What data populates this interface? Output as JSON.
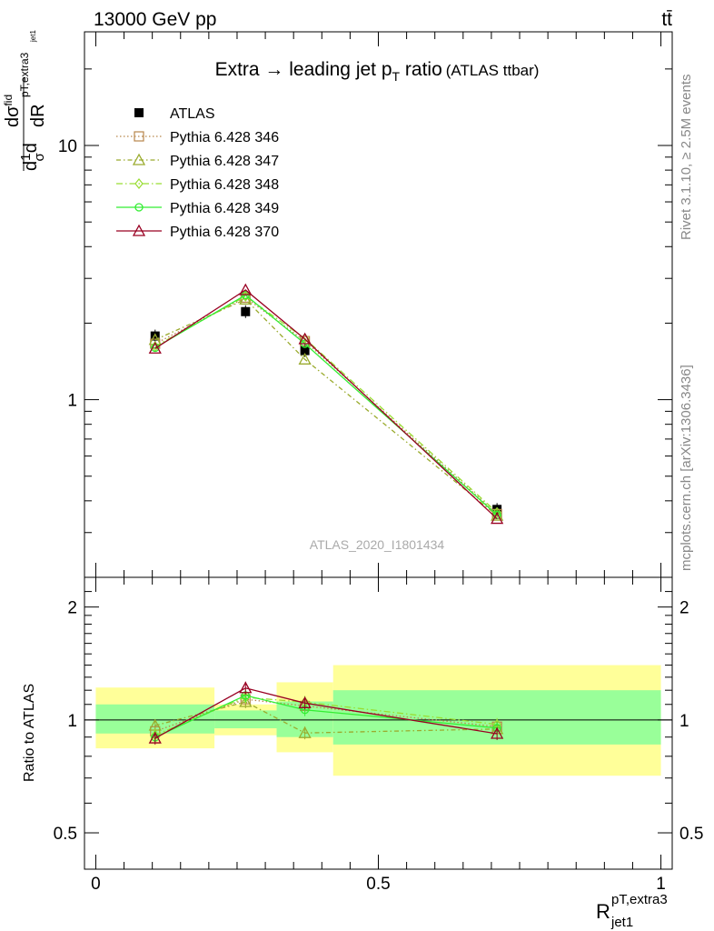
{
  "header": {
    "energy_label": "13000 GeV pp",
    "process_label": "tt̄"
  },
  "side_labels": {
    "rivet": "Rivet 3.1.10, ≥ 2.5M events",
    "mcplots": "mcplots.cern.ch [arXiv:1306.3436]"
  },
  "main_panel": {
    "title_main": "Extra → leading jet p",
    "title_sub": "T",
    "title_ratio": " ratio",
    "title_tag": "(ATLAS ttbar)",
    "watermark": "ATLAS_2020_I1801434",
    "ylabel": {
      "d1": "d",
      "one": "1",
      "sigma": "σ",
      "d2": "d",
      "dsigma": "dσ",
      "fid": "fid",
      "sub": "pT,extra3",
      "sub2": "jet1",
      "dR": "dR"
    },
    "y_ticks": [
      {
        "value": 1,
        "label": "1"
      },
      {
        "value": 10,
        "label": "10"
      }
    ]
  },
  "ratio_panel": {
    "ylabel": "Ratio to ATLAS",
    "y_ticks": [
      {
        "value": 0.5,
        "label": "0.5"
      },
      {
        "value": 1,
        "label": "1"
      },
      {
        "value": 2,
        "label": "2"
      }
    ]
  },
  "x_axis": {
    "label_main": "R",
    "label_sup": "pT,extra3",
    "label_sub": "jet1",
    "ticks": [
      {
        "value": 0,
        "label": "0"
      },
      {
        "value": 0.5,
        "label": "0.5"
      },
      {
        "value": 1,
        "label": "1"
      }
    ]
  },
  "chart_data": {
    "type": "line",
    "xlim": [
      -0.02,
      1.02
    ],
    "ylim_main": [
      0.2,
      28
    ],
    "ylog_main": true,
    "ylim_ratio": [
      0.4,
      2.4
    ],
    "ylog_ratio": true,
    "bins": [
      {
        "x": 0.105,
        "lo": 0.0,
        "hi": 0.21
      },
      {
        "x": 0.265,
        "lo": 0.21,
        "hi": 0.32
      },
      {
        "x": 0.37,
        "lo": 0.32,
        "hi": 0.42
      },
      {
        "x": 0.71,
        "lo": 0.42,
        "hi": 1.0
      }
    ],
    "data": {
      "name": "ATLAS",
      "values": [
        1.78,
        2.22,
        1.56,
        0.37
      ],
      "band_inner": [
        [
          0.92,
          1.1
        ],
        [
          0.95,
          1.06
        ],
        [
          0.9,
          1.12
        ],
        [
          0.86,
          1.2
        ]
      ],
      "band_outer": [
        [
          0.84,
          1.22
        ],
        [
          0.91,
          1.1
        ],
        [
          0.82,
          1.26
        ],
        [
          0.71,
          1.4
        ]
      ]
    },
    "series": [
      {
        "name": "Pythia 6.428 346",
        "color": "#b8864b",
        "marker": "square",
        "dash": "1.5,2.5",
        "values": [
          1.66,
          2.52,
          1.7,
          0.355
        ]
      },
      {
        "name": "Pythia 6.428 347",
        "color": "#9aab2e",
        "marker": "triangle",
        "dash": "5,3,1.5,3",
        "values": [
          1.72,
          2.48,
          1.44,
          0.35
        ]
      },
      {
        "name": "Pythia 6.428 348",
        "color": "#99dd33",
        "marker": "diamond",
        "dash": "7,3,1.5,3",
        "values": [
          1.62,
          2.55,
          1.74,
          0.36
        ]
      },
      {
        "name": "Pythia 6.428 349",
        "color": "#33ee33",
        "marker": "circle",
        "dash": "",
        "values": [
          1.6,
          2.58,
          1.66,
          0.352
        ]
      },
      {
        "name": "Pythia 6.428 370",
        "color": "#990022",
        "marker": "triangle",
        "dash": "",
        "values": [
          1.59,
          2.7,
          1.73,
          0.34
        ]
      }
    ]
  }
}
